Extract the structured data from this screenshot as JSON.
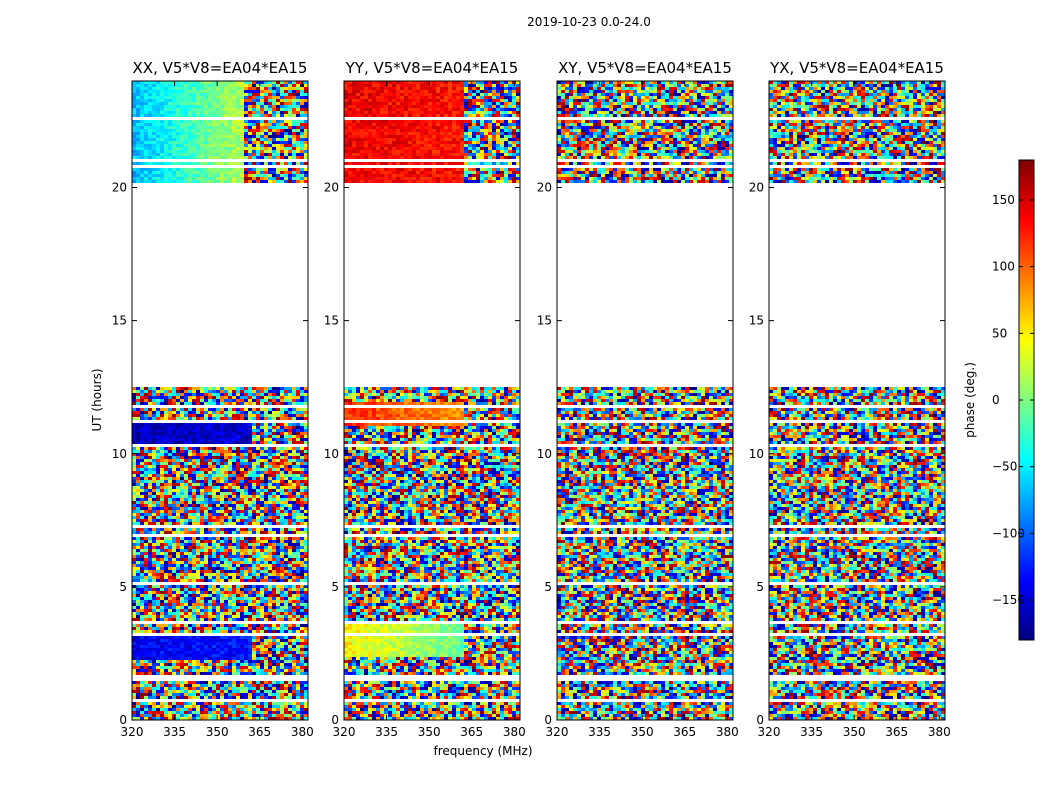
{
  "chart_data": {
    "type": "heatmap",
    "suptitle": "2019-10-23 0.0-24.0",
    "xlabel": "frequency (MHz)",
    "ylabel": "UT (hours)",
    "xlim": [
      320,
      382
    ],
    "ylim": [
      0,
      24
    ],
    "xticks": [
      320,
      335,
      350,
      365,
      380
    ],
    "yticks": [
      0,
      5,
      10,
      15,
      20
    ],
    "colorbar": {
      "label": "phase (deg.)",
      "range": [
        -180,
        180
      ],
      "ticks": [
        150,
        100,
        50,
        0,
        -50,
        -100,
        -150
      ],
      "tick_labels": [
        "150",
        "100",
        "50",
        "0",
        "−50",
        "−100",
        "−150"
      ],
      "colormap": [
        "#00007f",
        "#0000ff",
        "#007fff",
        "#00ffff",
        "#7fff7f",
        "#ffff00",
        "#ff7f00",
        "#ff0000",
        "#7f0000"
      ]
    },
    "data_gaps_ut": [
      [
        12.5,
        20.2
      ],
      [
        22.5,
        22.7
      ],
      [
        21.0,
        21.1
      ],
      [
        20.7,
        20.8
      ],
      [
        11.7,
        11.8
      ],
      [
        11.2,
        11.3
      ],
      [
        10.3,
        10.4
      ],
      [
        9.3,
        9.4
      ],
      [
        7.2,
        7.3
      ],
      [
        6.9,
        7.0
      ],
      [
        5.1,
        5.2
      ],
      [
        3.6,
        3.7
      ],
      [
        3.2,
        3.3
      ],
      [
        1.5,
        1.7
      ],
      [
        0.7,
        0.8
      ],
      [
        0.4,
        0.5
      ]
    ],
    "panels": [
      {
        "title": "XX, V5*V8=EA04*EA15",
        "coherent": [
          {
            "t0": 20.2,
            "t1": 24.0,
            "f1": 360,
            "start_phase": -70,
            "end_phase": 20
          },
          {
            "t0": 10.4,
            "t1": 11.2,
            "f1": 362,
            "start_phase": -160,
            "end_phase": -150
          },
          {
            "t0": 2.2,
            "t1": 3.2,
            "f1": 362,
            "start_phase": -140,
            "end_phase": -130
          }
        ]
      },
      {
        "title": "YY, V5*V8=EA04*EA15",
        "coherent": [
          {
            "t0": 20.2,
            "t1": 24.0,
            "f1": 362,
            "start_phase": 140,
            "end_phase": 130
          },
          {
            "t0": 11.0,
            "t1": 11.9,
            "f1": 362,
            "start_phase": 120,
            "end_phase": 80
          },
          {
            "t0": 2.4,
            "t1": 3.6,
            "f1": 362,
            "start_phase": 50,
            "end_phase": -10
          }
        ]
      },
      {
        "title": "XY, V5*V8=EA04*EA15",
        "coherent": []
      },
      {
        "title": "YX, V5*V8=EA04*EA15",
        "coherent": []
      }
    ]
  }
}
